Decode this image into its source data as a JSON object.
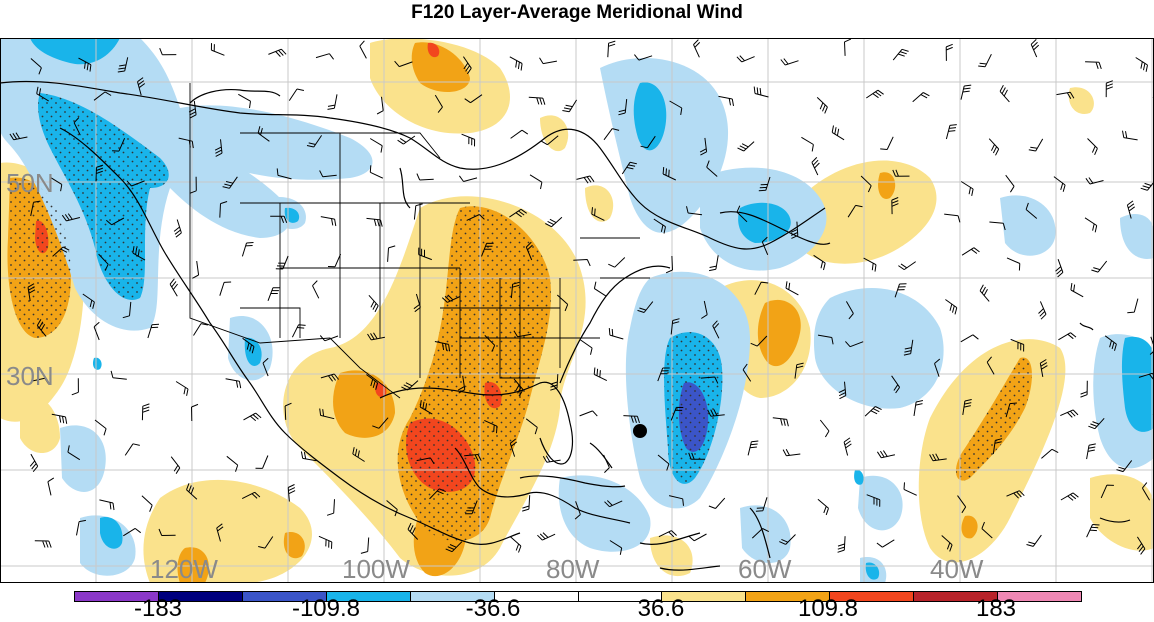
{
  "title": "F120 Layer-Average Meridional Wind",
  "lat_labels": [
    "50N",
    "30N"
  ],
  "lon_labels": [
    "120W",
    "100W",
    "80W",
    "60W",
    "40W"
  ],
  "colorbar": {
    "labels": [
      "-183",
      "-109.8",
      "-36.6",
      "36.6",
      "109.8",
      "183"
    ],
    "colors": [
      "#8b38c8",
      "#00007e",
      "#3b55c8",
      "#19b4ea",
      "#b4dcf4",
      "#ffffff",
      "#ffffff",
      "#fae28c",
      "#f2a316",
      "#f2461e",
      "#b8232a",
      "#ef88b4"
    ]
  },
  "map": {
    "fill_colors": {
      "pos_light": "#fae28c",
      "pos_mid": "#f2a316",
      "pos_strong": "#f2461e",
      "neg_light": "#b4dcf4",
      "neg_mid": "#19b4ea",
      "neg_strong": "#3b55c8"
    },
    "marker": "storm-center-dot"
  }
}
